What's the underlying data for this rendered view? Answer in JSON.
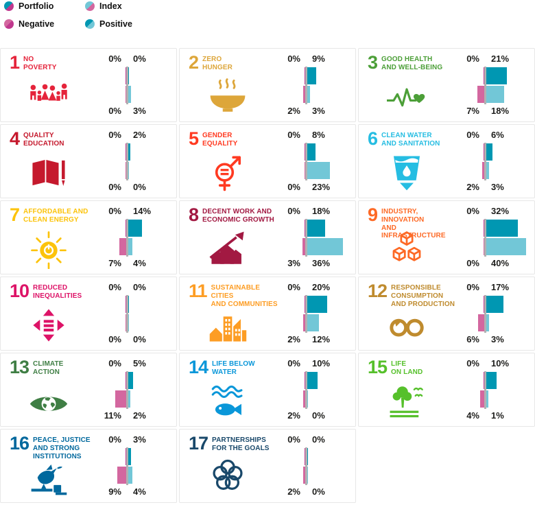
{
  "legend": {
    "items": [
      {
        "id": "portfolio",
        "label": "Portfolio",
        "icon": "portfolio-legend-icon",
        "colors": [
          "#0097b2",
          "#c0388e"
        ]
      },
      {
        "id": "index",
        "label": "Index",
        "icon": "index-legend-icon",
        "colors": [
          "#72c7d7",
          "#d3679f"
        ]
      },
      {
        "id": "negative",
        "label": "Negative",
        "icon": "negative-legend-icon",
        "colors": [
          "#d3679f",
          "#c0388e"
        ]
      },
      {
        "id": "positive",
        "label": "Positive",
        "icon": "positive-legend-icon",
        "colors": [
          "#0097b2",
          "#72c7d7"
        ]
      }
    ]
  },
  "colors": {
    "portfolio_positive": "#0097b2",
    "portfolio_negative": "#c0388e",
    "index_positive": "#72c7d7",
    "index_negative": "#d3679f",
    "axis": "#b1b1b1",
    "label_text": "#1d1d1b"
  },
  "chart_data": {
    "type": "bar",
    "orientation": "horizontal-diverging",
    "unit": "%",
    "series_order": [
      "Portfolio",
      "Index"
    ],
    "legend_position": "top-left",
    "goals": [
      {
        "number": "1",
        "title_lines": [
          "NO",
          "POVERTY"
        ],
        "color": "#E5243B",
        "icon": "sdg-1-no-poverty-icon",
        "portfolio_negative": 0,
        "portfolio_positive": 0,
        "index_negative": 0,
        "index_positive": 3
      },
      {
        "number": "2",
        "title_lines": [
          "ZERO",
          "HUNGER"
        ],
        "color": "#DDA63A",
        "icon": "sdg-2-zero-hunger-icon",
        "portfolio_negative": 0,
        "portfolio_positive": 9,
        "index_negative": 2,
        "index_positive": 3
      },
      {
        "number": "3",
        "title_lines": [
          "GOOD HEALTH",
          "AND WELL-BEING"
        ],
        "color": "#4C9F38",
        "icon": "sdg-3-good-health-icon",
        "portfolio_negative": 0,
        "portfolio_positive": 21,
        "index_negative": 7,
        "index_positive": 18
      },
      {
        "number": "4",
        "title_lines": [
          "QUALITY",
          "EDUCATION"
        ],
        "color": "#C5192D",
        "icon": "sdg-4-quality-education-icon",
        "portfolio_negative": 0,
        "portfolio_positive": 2,
        "index_negative": 0,
        "index_positive": 0
      },
      {
        "number": "5",
        "title_lines": [
          "GENDER",
          "EQUALITY"
        ],
        "color": "#FF3A21",
        "icon": "sdg-5-gender-equality-icon",
        "portfolio_negative": 0,
        "portfolio_positive": 8,
        "index_negative": 0,
        "index_positive": 23
      },
      {
        "number": "6",
        "title_lines": [
          "CLEAN WATER",
          "AND SANITATION"
        ],
        "color": "#26BDE2",
        "icon": "sdg-6-clean-water-icon",
        "portfolio_negative": 0,
        "portfolio_positive": 6,
        "index_negative": 2,
        "index_positive": 3
      },
      {
        "number": "7",
        "title_lines": [
          "AFFORDABLE AND",
          "CLEAN ENERGY"
        ],
        "color": "#FCC30B",
        "icon": "sdg-7-clean-energy-icon",
        "portfolio_negative": 0,
        "portfolio_positive": 14,
        "index_negative": 7,
        "index_positive": 4
      },
      {
        "number": "8",
        "title_lines": [
          "DECENT WORK AND",
          "ECONOMIC GROWTH"
        ],
        "color": "#A21942",
        "icon": "sdg-8-decent-work-icon",
        "portfolio_negative": 0,
        "portfolio_positive": 18,
        "index_negative": 3,
        "index_positive": 36
      },
      {
        "number": "9",
        "title_lines": [
          "INDUSTRY, INNOVATION",
          "AND INFRASTRUCTURE"
        ],
        "color": "#FD6925",
        "icon": "sdg-9-industry-innovation-icon",
        "portfolio_negative": 0,
        "portfolio_positive": 32,
        "index_negative": 0,
        "index_positive": 40
      },
      {
        "number": "10",
        "title_lines": [
          "REDUCED",
          "INEQUALITIES"
        ],
        "color": "#DD1367",
        "icon": "sdg-10-reduced-inequalities-icon",
        "portfolio_negative": 0,
        "portfolio_positive": 0,
        "index_negative": 0,
        "index_positive": 0
      },
      {
        "number": "11",
        "title_lines": [
          "SUSTAINABLE CITIES",
          "AND COMMUNITIES"
        ],
        "color": "#FD9D24",
        "icon": "sdg-11-sustainable-cities-icon",
        "portfolio_negative": 0,
        "portfolio_positive": 20,
        "index_negative": 2,
        "index_positive": 12
      },
      {
        "number": "12",
        "title_lines": [
          "RESPONSIBLE",
          "CONSUMPTION",
          "AND PRODUCTION"
        ],
        "color": "#BF8B2E",
        "icon": "sdg-12-responsible-consumption-icon",
        "portfolio_negative": 0,
        "portfolio_positive": 17,
        "index_negative": 6,
        "index_positive": 3
      },
      {
        "number": "13",
        "title_lines": [
          "CLIMATE",
          "ACTION"
        ],
        "color": "#3F7E44",
        "icon": "sdg-13-climate-action-icon",
        "portfolio_negative": 0,
        "portfolio_positive": 5,
        "index_negative": 11,
        "index_positive": 2
      },
      {
        "number": "14",
        "title_lines": [
          "LIFE BELOW",
          "WATER"
        ],
        "color": "#0A97D9",
        "icon": "sdg-14-life-below-water-icon",
        "portfolio_negative": 0,
        "portfolio_positive": 10,
        "index_negative": 2,
        "index_positive": 0
      },
      {
        "number": "15",
        "title_lines": [
          "LIFE",
          "ON LAND"
        ],
        "color": "#56C02B",
        "icon": "sdg-15-life-on-land-icon",
        "portfolio_negative": 0,
        "portfolio_positive": 10,
        "index_negative": 4,
        "index_positive": 1
      },
      {
        "number": "16",
        "title_lines": [
          "PEACE, JUSTICE",
          "AND STRONG",
          "INSTITUTIONS"
        ],
        "color": "#00689D",
        "icon": "sdg-16-peace-justice-icon",
        "portfolio_negative": 0,
        "portfolio_positive": 3,
        "index_negative": 9,
        "index_positive": 4
      },
      {
        "number": "17",
        "title_lines": [
          "PARTNERSHIPS",
          "FOR THE GOALS"
        ],
        "color": "#19486A",
        "icon": "sdg-17-partnerships-icon",
        "portfolio_negative": 0,
        "portfolio_positive": 0,
        "index_negative": 2,
        "index_positive": 0
      }
    ]
  }
}
